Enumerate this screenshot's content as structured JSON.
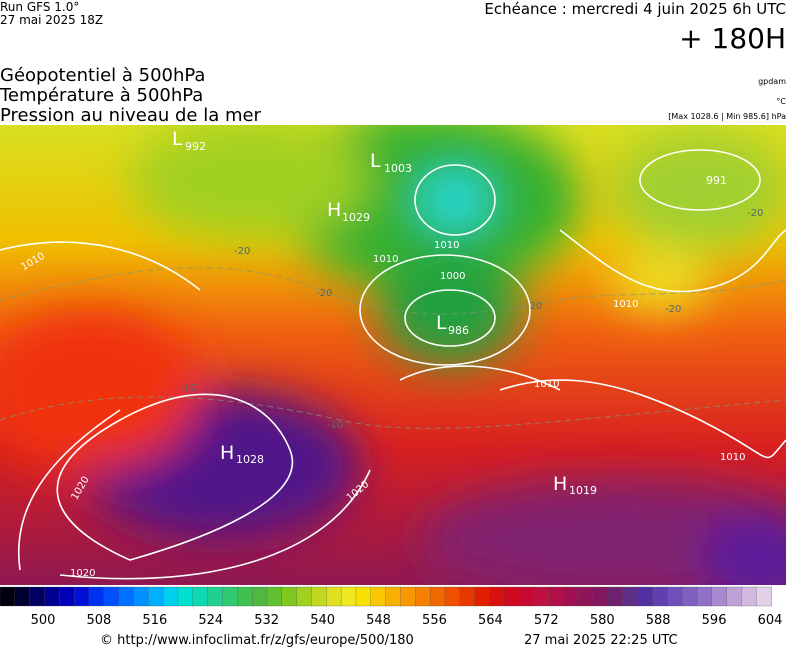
{
  "header": {
    "run": "Run GFS 1.0°",
    "run_date": "27 mai 2025 18Z",
    "valid": "Echéance : mercredi 4 juin 2025 6h UTC",
    "lead": "+ 180H"
  },
  "legend": {
    "lines": [
      "Géopotentiel à 500hPa",
      "Température à 500hPa",
      "Pression au niveau de la mer"
    ],
    "units": [
      "gpdam",
      "°C"
    ],
    "range": "[Max 1028.6 | Min 985.6] hPa"
  },
  "map": {
    "systems": [
      {
        "letter": "L",
        "value": "992"
      },
      {
        "letter": "L",
        "value": "1003"
      },
      {
        "letter": "H",
        "value": "1029"
      },
      {
        "letter": "L",
        "value": "986"
      },
      {
        "letter": "H",
        "value": "1028"
      },
      {
        "letter": "H",
        "value": "1019"
      },
      {
        "value": "991"
      }
    ],
    "isobar_labels": [
      "1010",
      "1000",
      "1010",
      "1010",
      "1010",
      "1020",
      "1020",
      "1020",
      "1010",
      "1010"
    ],
    "temperature_labels": [
      -20,
      -20,
      -20,
      -20,
      -20,
      -10,
      -10
    ]
  },
  "colorbar": {
    "labels": [
      500,
      508,
      516,
      524,
      532,
      540,
      548,
      556,
      564,
      572,
      580,
      588,
      596,
      604
    ]
  },
  "footer": {
    "url": "© http://www.infoclimat.fr/z/gfs/europe/500/180",
    "timestamp": "27 mai 2025 22:25 UTC"
  }
}
